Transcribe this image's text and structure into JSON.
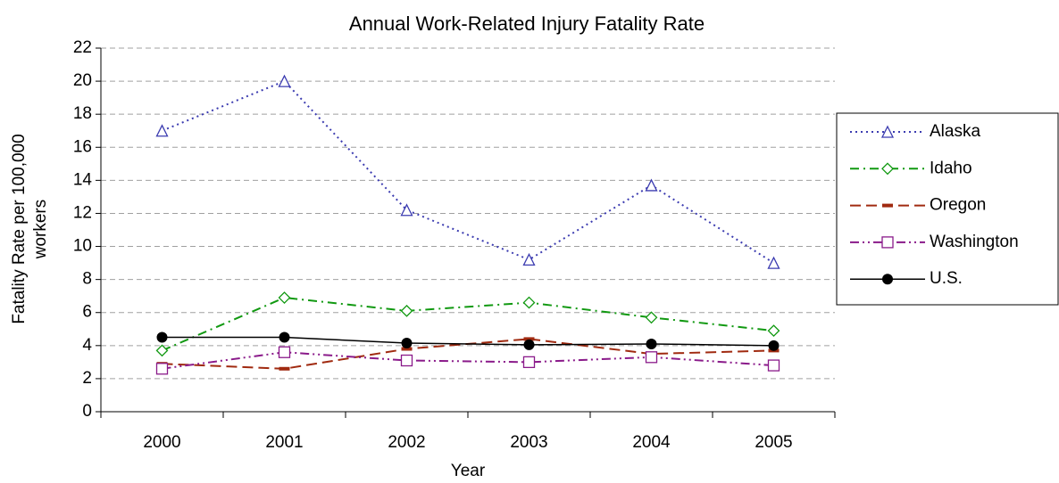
{
  "chart_data": {
    "type": "line",
    "title": "Annual Work-Related Injury Fatality Rate",
    "xlabel": "Year",
    "ylabel": [
      "Fatality Rate per 100,000",
      "workers"
    ],
    "categories": [
      "2000",
      "2001",
      "2002",
      "2003",
      "2004",
      "2005"
    ],
    "ylim": [
      0,
      22
    ],
    "yticks": [
      0,
      2,
      4,
      6,
      8,
      10,
      12,
      14,
      16,
      18,
      20,
      22
    ],
    "grid": true,
    "legend": "right",
    "series": [
      {
        "name": "Alaska",
        "color": "#3b3bb0",
        "marker": "triangle",
        "line_style": "dotted",
        "values": [
          17.0,
          20.0,
          12.2,
          9.2,
          13.7,
          9.0
        ]
      },
      {
        "name": "Idaho",
        "color": "#119911",
        "marker": "diamond",
        "line_style": "dash-dot",
        "values": [
          3.7,
          6.9,
          6.1,
          6.6,
          5.7,
          4.9
        ]
      },
      {
        "name": "Oregon",
        "color": "#a02a10",
        "marker": "dash",
        "line_style": "dashed",
        "values": [
          2.9,
          2.6,
          3.8,
          4.4,
          3.5,
          3.7
        ]
      },
      {
        "name": "Washington",
        "color": "#8a1a8a",
        "marker": "square",
        "line_style": "dash-dot-dot",
        "values": [
          2.6,
          3.6,
          3.1,
          3.0,
          3.3,
          2.8
        ]
      },
      {
        "name": "U.S.",
        "color": "#000000",
        "marker": "circle",
        "line_style": "solid",
        "values": [
          4.5,
          4.5,
          4.15,
          4.05,
          4.1,
          4.0
        ]
      }
    ]
  }
}
